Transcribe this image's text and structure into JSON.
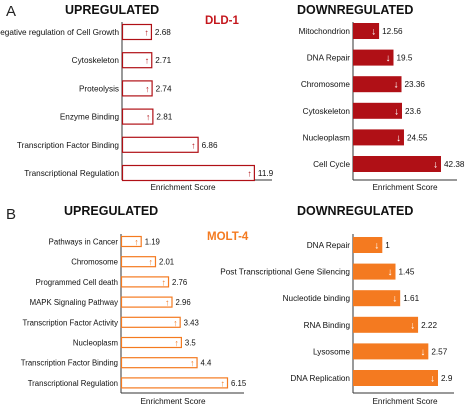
{
  "chart_data": [
    {
      "type": "bar",
      "orientation": "horizontal",
      "panel": "A",
      "subtitle": "UPREGULATED",
      "cell_line": "DLD-1",
      "xlabel": "Enrichment Score",
      "style": "outline",
      "color": "#b01016",
      "arrow": "↑",
      "xlim": [
        0,
        12
      ],
      "categories": [
        "Negative regulation of Cell Growth",
        "Cytoskeleton",
        "Proteolysis",
        "Enzyme Binding",
        "Transcription Factor Binding",
        "Transcriptional Regulation"
      ],
      "values": [
        2.68,
        2.71,
        2.74,
        2.81,
        6.86,
        11.9
      ],
      "value_labels": [
        "2.68",
        "2.71",
        "2.74",
        "2.81",
        "6.86",
        "11.9"
      ]
    },
    {
      "type": "bar",
      "orientation": "horizontal",
      "panel": "",
      "subtitle": "DOWNREGULATED",
      "cell_line": "",
      "xlabel": "Enrichment Score",
      "style": "filled",
      "color": "#b01016",
      "arrow": "↓",
      "xlim": [
        0,
        42.38
      ],
      "categories": [
        "Mitochondrion",
        "DNA Repair",
        "Chromosome",
        "Cytoskeleton",
        "Nucleoplasm",
        "Cell Cycle"
      ],
      "values": [
        12.56,
        19.5,
        23.36,
        23.6,
        24.55,
        42.38
      ],
      "value_labels": [
        "12.56",
        "19.5",
        "23.36",
        "23.6",
        "24.55",
        "42.38"
      ]
    },
    {
      "type": "bar",
      "orientation": "horizontal",
      "panel": "B",
      "subtitle": "UPREGULATED",
      "cell_line": "MOLT-4",
      "xlabel": "Enrichment Score",
      "style": "outline",
      "color": "#f47a20",
      "arrow": "↑",
      "xlim": [
        0,
        6.15
      ],
      "categories": [
        "Pathways in Cancer",
        "Chromosome",
        "Programmed Cell death",
        "MAPK Signaling Pathway",
        "Transcription Factor Activity",
        "Nucleoplasm",
        "Transcription Factor Binding",
        "Transcriptional Regulation"
      ],
      "values": [
        1.19,
        2.01,
        2.76,
        2.96,
        3.43,
        3.5,
        4.4,
        6.15
      ],
      "value_labels": [
        "1.19",
        "2.01",
        "2.76",
        "2.96",
        "3.43",
        "3.5",
        "4.4",
        "6.15"
      ]
    },
    {
      "type": "bar",
      "orientation": "horizontal",
      "panel": "",
      "subtitle": "DOWNREGULATED",
      "cell_line": "",
      "xlabel": "Enrichment Score",
      "style": "filled",
      "color": "#f47a20",
      "arrow": "↓",
      "xlim": [
        0,
        2.9
      ],
      "categories": [
        "DNA Repair",
        "Post Transcriptional Gene Silencing",
        "Nucleotide binding",
        "RNA Binding",
        "Lysosome",
        "DNA Replication"
      ],
      "values": [
        1,
        1.45,
        1.61,
        2.22,
        2.57,
        2.9
      ],
      "value_labels": [
        "1",
        "1.45",
        "1.61",
        "2.22",
        "2.57",
        "2.9"
      ]
    }
  ]
}
